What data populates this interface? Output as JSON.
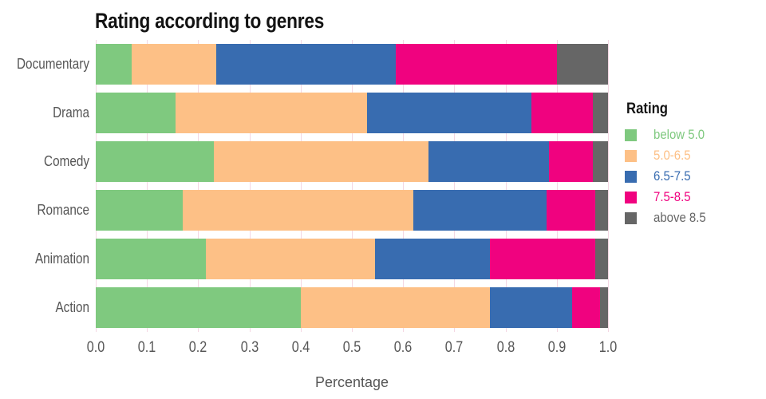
{
  "title": "Rating according to genres",
  "axis": {
    "x_ticks": [
      "0.0",
      "0.1",
      "0.2",
      "0.3",
      "0.4",
      "0.5",
      "0.6",
      "0.7",
      "0.8",
      "0.9",
      "1.0"
    ],
    "x_label": "Percentage"
  },
  "legend": {
    "title": "Rating"
  },
  "colors": {
    "grid": "#f4d7e3",
    "axis_text": "#565656",
    "title_text": "#131313"
  },
  "chart_data": {
    "type": "bar",
    "orientation": "horizontal",
    "stacked": true,
    "title": "Rating according to genres",
    "xlabel": "Percentage",
    "ylabel": "",
    "xlim": [
      0,
      1
    ],
    "grid": true,
    "legend_position": "right",
    "legend_title": "Rating",
    "categories": [
      "Documentary",
      "Drama",
      "Comedy",
      "Romance",
      "Animation",
      "Action"
    ],
    "series": [
      {
        "name": "below 5.0",
        "color": "#7fc97f",
        "values": [
          0.07,
          0.155,
          0.23,
          0.17,
          0.215,
          0.4
        ]
      },
      {
        "name": "5.0-6.5",
        "color": "#fdc086",
        "values": [
          0.165,
          0.375,
          0.42,
          0.45,
          0.33,
          0.37
        ]
      },
      {
        "name": "6.5-7.5",
        "color": "#386cb0",
        "values": [
          0.35,
          0.32,
          0.235,
          0.26,
          0.225,
          0.16
        ]
      },
      {
        "name": "7.5-8.5",
        "color": "#f0027f",
        "values": [
          0.315,
          0.12,
          0.085,
          0.095,
          0.205,
          0.055
        ]
      },
      {
        "name": "above 8.5",
        "color": "#666666",
        "values": [
          0.1,
          0.03,
          0.03,
          0.025,
          0.025,
          0.015
        ]
      }
    ]
  }
}
